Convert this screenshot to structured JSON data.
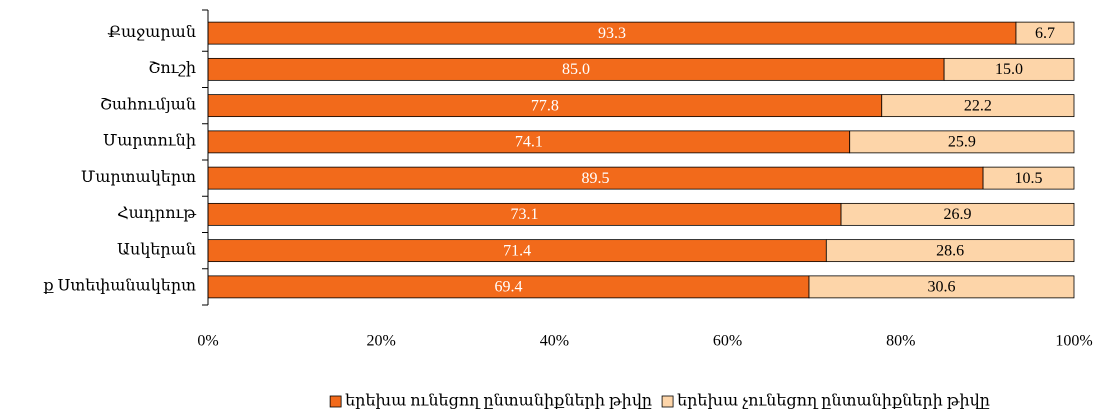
{
  "chart_data": {
    "type": "stacked_barh",
    "categories": [
      "Քաջարան",
      "Շուշի",
      "Շահումյան",
      "Մարտունի",
      "Մարտակերտ",
      "Հադրութ",
      "Ասկերան",
      "ք Ստեփանակերտ"
    ],
    "series": [
      {
        "name": "երեխա ունեցող ընտանիքների թիվը",
        "color": "#f26a1b",
        "values": [
          93.3,
          85,
          77.8,
          74.1,
          89.5,
          73.1,
          71.4,
          69.4
        ],
        "value_labels": [
          "93.3",
          "85.0",
          "77.8",
          "74.1",
          "89.5",
          "73.1",
          "71.4",
          "69.4"
        ]
      },
      {
        "name": "երեխա չունեցող ընտանիքների թիվը",
        "color": "#fdd5a9",
        "values": [
          6.7,
          15,
          22.2,
          25.9,
          10.5,
          26.9,
          28.6,
          30.6
        ],
        "value_labels": [
          "6.7",
          "15.0",
          "22.2",
          "25.9",
          "10.5",
          "26.9",
          "28.6",
          "30.6"
        ]
      }
    ],
    "xlim": [
      0,
      100
    ],
    "xticks": [
      {
        "value": 0,
        "label": "0%"
      },
      {
        "value": 20,
        "label": "20%"
      },
      {
        "value": 40,
        "label": "40%"
      },
      {
        "value": 60,
        "label": "60%"
      },
      {
        "value": 80,
        "label": "80%"
      },
      {
        "value": 100,
        "label": "100%"
      }
    ],
    "legend": "bottom"
  }
}
